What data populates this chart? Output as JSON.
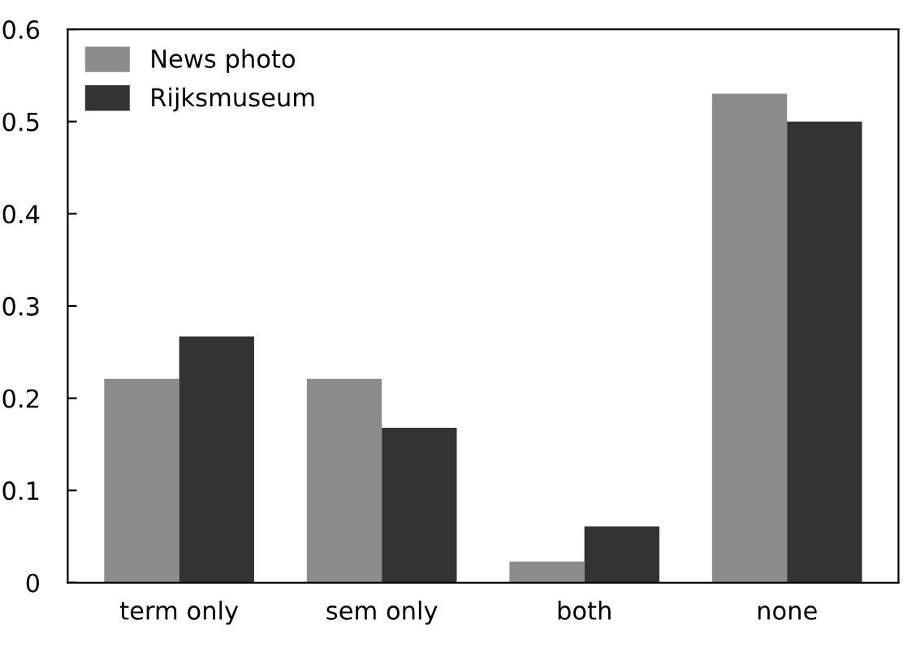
{
  "chart_data": {
    "type": "bar",
    "categories": [
      "term only",
      "sem only",
      "both",
      "none"
    ],
    "series": [
      {
        "name": "News photo",
        "color": "#8c8c8c",
        "values": [
          0.221,
          0.221,
          0.023,
          0.53
        ]
      },
      {
        "name": "Rijksmuseum",
        "color": "#333333",
        "values": [
          0.267,
          0.168,
          0.061,
          0.5
        ]
      }
    ],
    "ylim": [
      0,
      0.6
    ],
    "yticks": [
      0,
      0.1,
      0.2,
      0.3,
      0.4,
      0.5,
      0.6
    ],
    "grid": false,
    "legend": "top left"
  }
}
